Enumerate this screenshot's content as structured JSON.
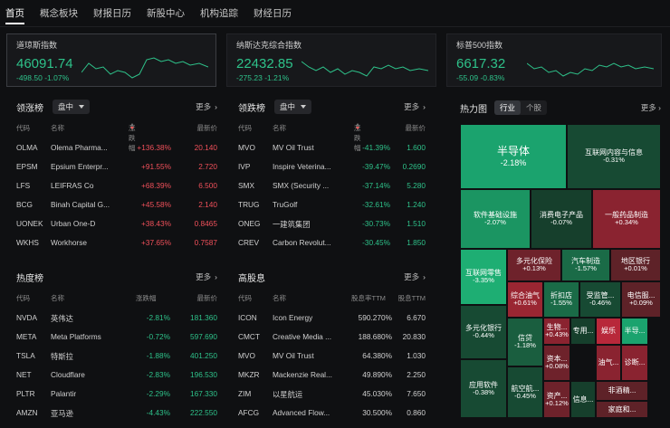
{
  "nav": [
    "首页",
    "概念板块",
    "财报日历",
    "新股中心",
    "机构追踪",
    "财经日历"
  ],
  "indices": [
    {
      "name": "道琼斯指数",
      "value": "46091.74",
      "change": "-498.50 -1.07%"
    },
    {
      "name": "纳斯达克综合指数",
      "value": "22432.85",
      "change": "-275.23 -1.21%"
    },
    {
      "name": "标普500指数",
      "value": "6617.32",
      "change": "-55.09 -0.83%"
    }
  ],
  "gainers": {
    "title": "领涨榜",
    "filter": "盘中",
    "more": "更多",
    "cols": [
      "代码",
      "名称",
      "涨跌幅",
      "最新价"
    ],
    "rows": [
      {
        "code": "OLMA",
        "name": "Olema Pharma...",
        "chg": "+136.38%",
        "price": "20.140"
      },
      {
        "code": "EPSM",
        "name": "Epsium Enterpr...",
        "chg": "+91.55%",
        "price": "2.720"
      },
      {
        "code": "LFS",
        "name": "LEIFRAS Co",
        "chg": "+68.39%",
        "price": "6.500"
      },
      {
        "code": "BCG",
        "name": "Binah Capital G...",
        "chg": "+45.58%",
        "price": "2.140"
      },
      {
        "code": "UONEK",
        "name": "Urban One-D",
        "chg": "+38.43%",
        "price": "0.8465"
      },
      {
        "code": "WKHS",
        "name": "Workhorse",
        "chg": "+37.65%",
        "price": "0.7587"
      }
    ]
  },
  "losers": {
    "title": "领跌榜",
    "filter": "盘中",
    "more": "更多",
    "rows": [
      {
        "code": "MVO",
        "name": "MV Oil Trust",
        "chg": "-41.39%",
        "price": "1.600"
      },
      {
        "code": "IVP",
        "name": "Inspire Veterina...",
        "chg": "-39.47%",
        "price": "0.2690"
      },
      {
        "code": "SMX",
        "name": "SMX (Security ...",
        "chg": "-37.14%",
        "price": "5.280"
      },
      {
        "code": "TRUG",
        "name": "TruGolf",
        "chg": "-32.61%",
        "price": "1.240"
      },
      {
        "code": "ONEG",
        "name": "一建筑集团",
        "chg": "-30.73%",
        "price": "1.510"
      },
      {
        "code": "CREV",
        "name": "Carbon Revolut...",
        "chg": "-30.45%",
        "price": "1.850"
      }
    ]
  },
  "hot": {
    "title": "热度榜",
    "more": "更多",
    "cols": [
      "代码",
      "名称",
      "涨跌幅",
      "最新价"
    ],
    "rows": [
      {
        "code": "NVDA",
        "name": "英伟达",
        "chg": "-2.81%",
        "price": "181.360"
      },
      {
        "code": "META",
        "name": "Meta Platforms",
        "chg": "-0.72%",
        "price": "597.690"
      },
      {
        "code": "TSLA",
        "name": "特斯拉",
        "chg": "-1.88%",
        "price": "401.250"
      },
      {
        "code": "NET",
        "name": "Cloudflare",
        "chg": "-2.83%",
        "price": "196.530"
      },
      {
        "code": "PLTR",
        "name": "Palantir",
        "chg": "-2.29%",
        "price": "167.330"
      },
      {
        "code": "AMZN",
        "name": "亚马逊",
        "chg": "-4.43%",
        "price": "222.550"
      }
    ]
  },
  "dividend": {
    "title": "高股息",
    "more": "更多",
    "cols": [
      "代码",
      "名称",
      "股息率TTM",
      "股息TTM"
    ],
    "rows": [
      {
        "code": "ICON",
        "name": "Icon Energy",
        "yield": "590.270%",
        "div": "6.670"
      },
      {
        "code": "CMCT",
        "name": "Creative Media ...",
        "yield": "188.680%",
        "div": "20.830"
      },
      {
        "code": "MVO",
        "name": "MV Oil Trust",
        "yield": "64.380%",
        "div": "1.030"
      },
      {
        "code": "MKZR",
        "name": "Mackenzie Real...",
        "yield": "49.890%",
        "div": "2.250"
      },
      {
        "code": "ZIM",
        "name": "以星航运",
        "yield": "45.030%",
        "div": "7.650"
      },
      {
        "code": "AFCG",
        "name": "Advanced Flow...",
        "yield": "30.500%",
        "div": "0.860"
      }
    ]
  },
  "heatmap": {
    "title": "热力图",
    "tabs": [
      "行业",
      "个股"
    ],
    "more": "更多",
    "tiles": [
      {
        "n": "半导体",
        "v": "-2.18%",
        "c": "#1ba36e",
        "big": true
      },
      {
        "n": "互联网内容与信息",
        "v": "-0.31%",
        "c": "#174a33"
      },
      {
        "n": "软件基础设施",
        "v": "-2.07%",
        "c": "#1b9562"
      },
      {
        "n": "消费电子产品",
        "v": "-0.07%",
        "c": "#163f2c"
      },
      {
        "n": "一般药品制造",
        "v": "+0.34%",
        "c": "#8a2330"
      },
      {
        "n": "互联网零售",
        "v": "-3.35%",
        "c": "#1eae73"
      },
      {
        "n": "多元化保险",
        "v": "+0.13%",
        "c": "#6e222b"
      },
      {
        "n": "汽车制造",
        "v": "-1.57%",
        "c": "#1a6b47"
      },
      {
        "n": "地区银行",
        "v": "+0.01%",
        "c": "#5e2228"
      },
      {
        "n": "综合油气",
        "v": "+0.61%",
        "c": "#9a2632"
      },
      {
        "n": "折扣店",
        "v": "-1.55%",
        "c": "#1a6b47"
      },
      {
        "n": "受监管...",
        "v": "-0.46%",
        "c": "#174a33"
      },
      {
        "n": "电信服...",
        "v": "+0.09%",
        "c": "#5e2228"
      },
      {
        "n": "多元化银行",
        "v": "-0.44%",
        "c": "#174a33"
      },
      {
        "n": "信贷",
        "v": "-1.18%",
        "c": "#1a5e3f"
      },
      {
        "n": "生物...",
        "v": "+0.43%",
        "c": "#8a2330"
      },
      {
        "n": "专用...",
        "v": "",
        "c": "#163f2c"
      },
      {
        "n": "娱乐",
        "v": "",
        "c": "#b8283a"
      },
      {
        "n": "半导...",
        "v": "",
        "c": "#1ba36e"
      },
      {
        "n": "资本...",
        "v": "+0.08%",
        "c": "#6e222b"
      },
      {
        "n": "油气...",
        "v": "",
        "c": "#8a2330"
      },
      {
        "n": "诊断...",
        "v": "",
        "c": "#8a2330"
      },
      {
        "n": "应用软件",
        "v": "-0.38%",
        "c": "#174a33"
      },
      {
        "n": "航空航...",
        "v": "-0.45%",
        "c": "#174a33"
      },
      {
        "n": "资产...",
        "v": "+0.12%",
        "c": "#6e222b"
      },
      {
        "n": "信息...",
        "v": "",
        "c": "#163f2c"
      },
      {
        "n": "非酒精...",
        "v": "",
        "c": "#5e2228"
      },
      {
        "n": "家庭和...",
        "v": "",
        "c": "#5e2228"
      }
    ]
  }
}
